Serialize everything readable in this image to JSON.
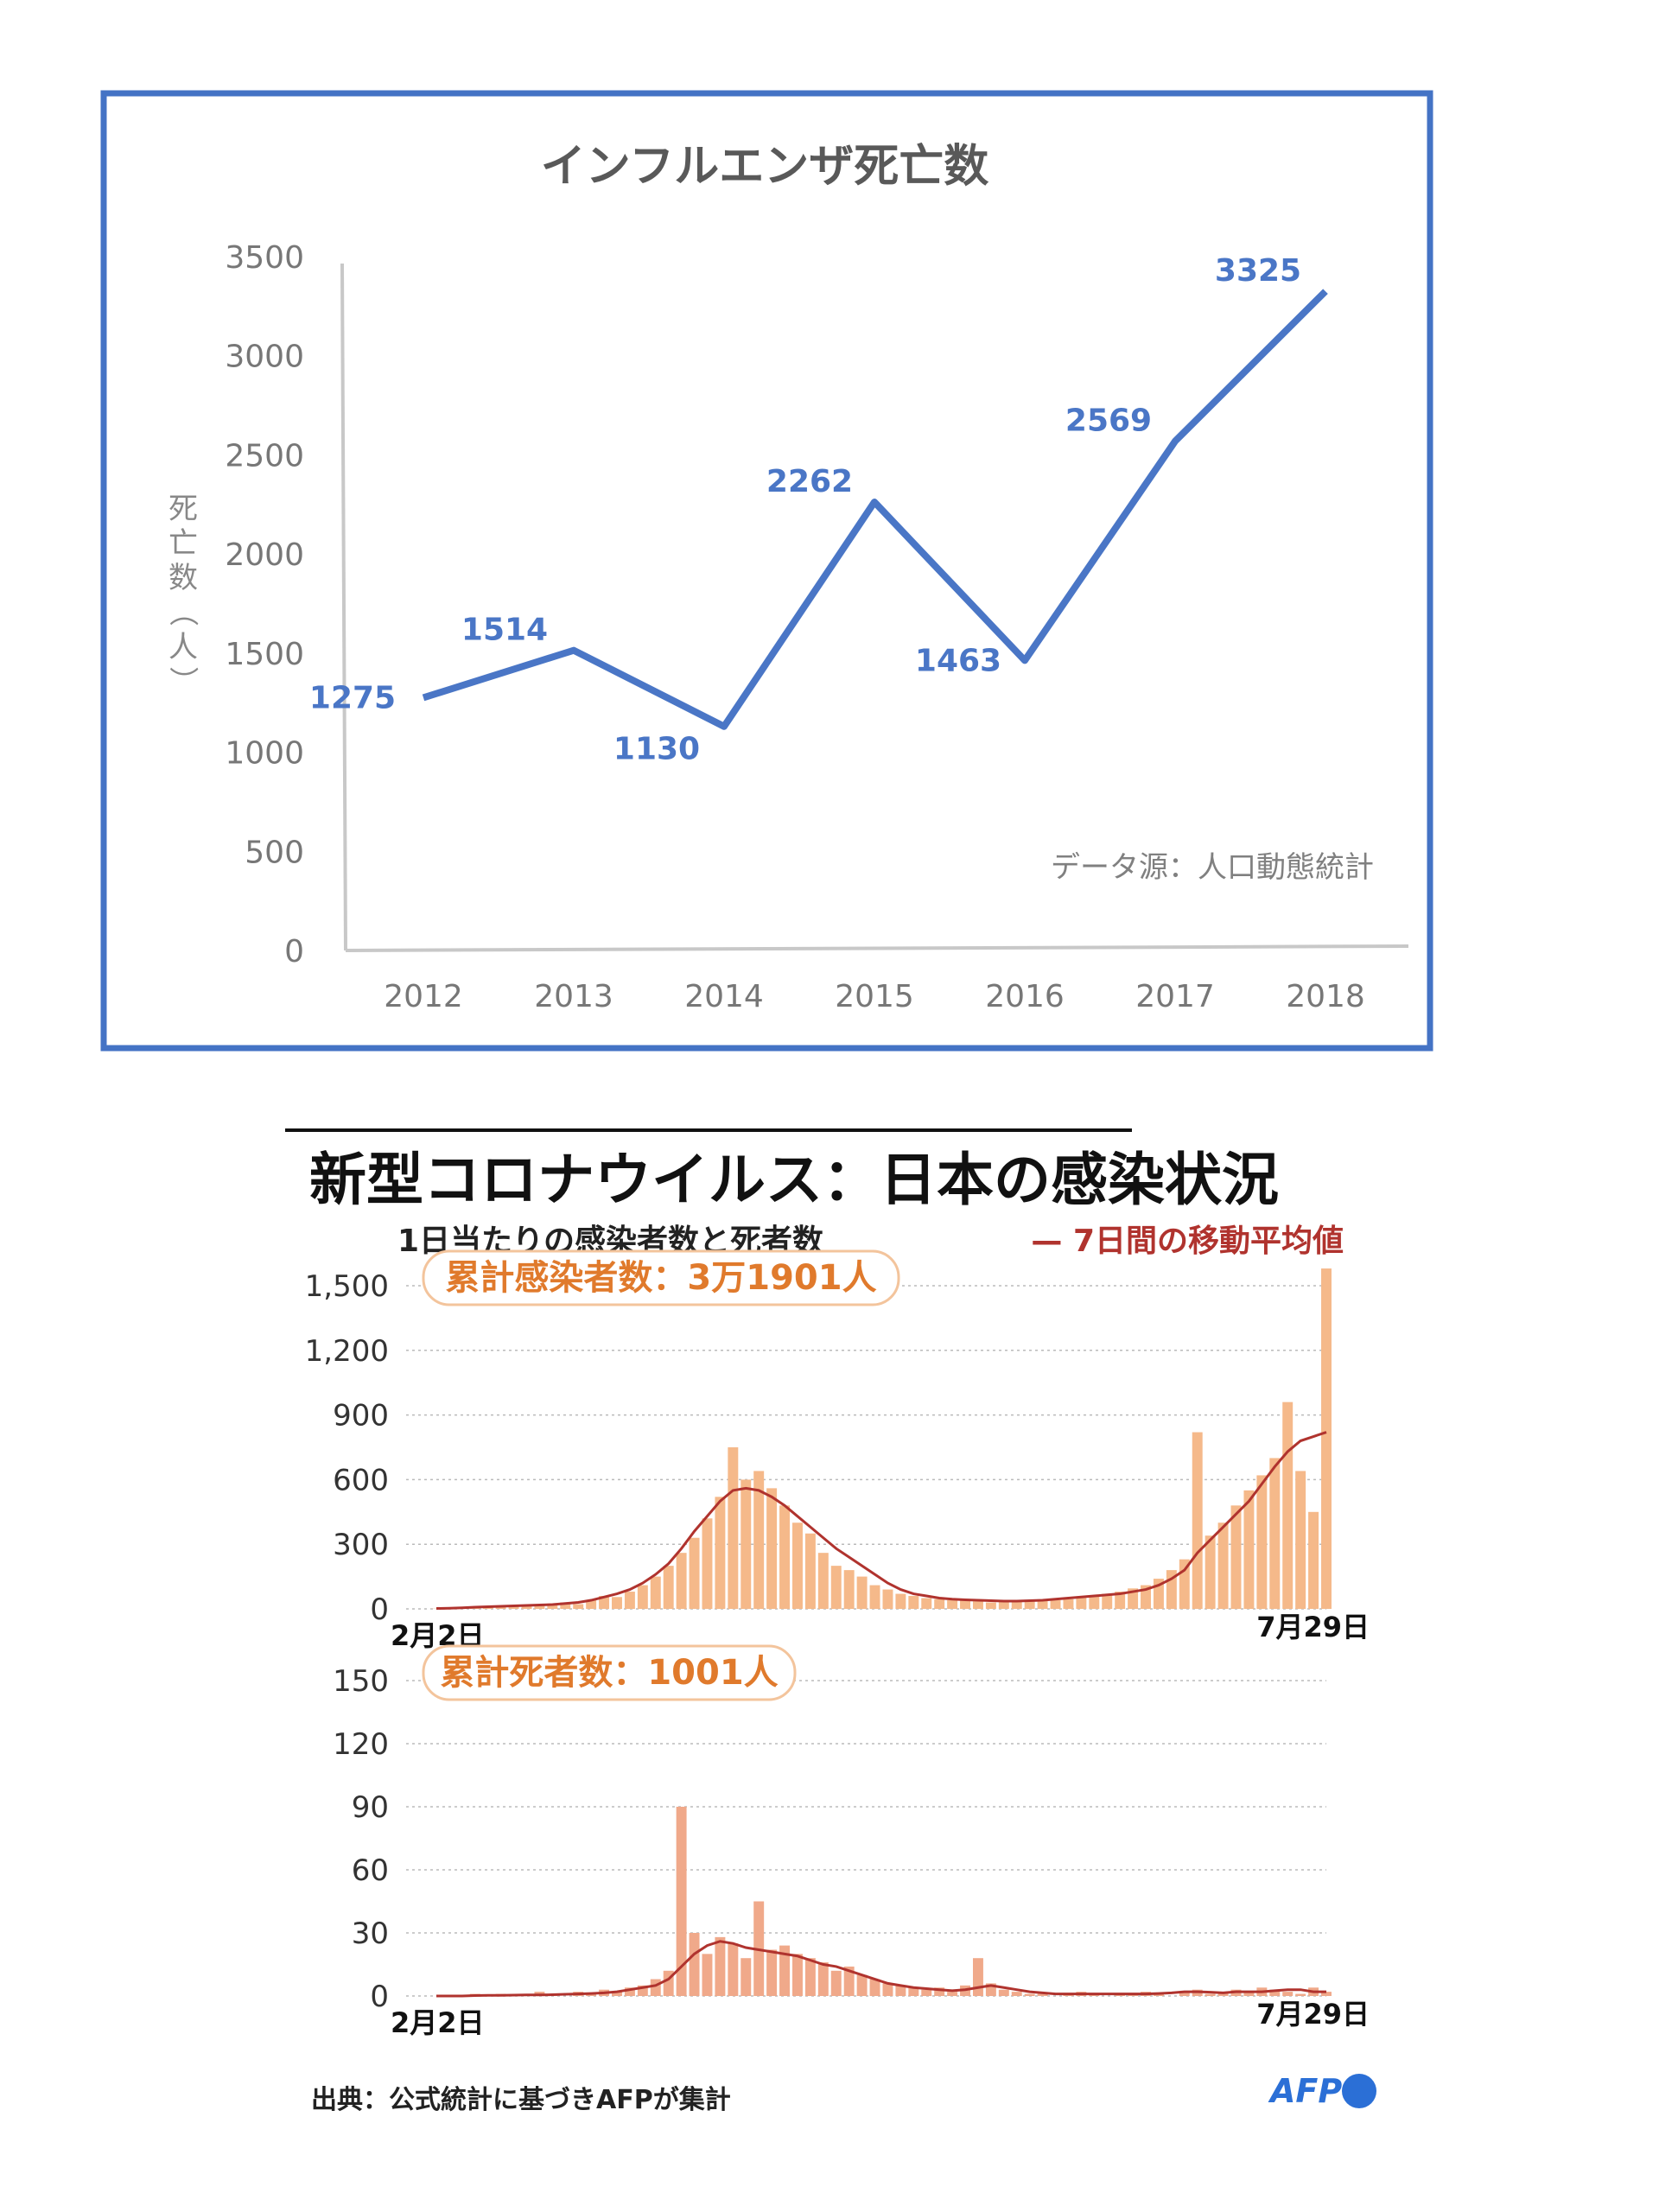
{
  "flu": {
    "title": "インフルエンザ死亡数",
    "ylabel": "死亡数（人）",
    "source_note": "データ源：人口動態統計",
    "line_color": "#4a76c6",
    "frame_color": "#4473c5",
    "chart_data": {
      "type": "line",
      "title": "インフルエンザ死亡数",
      "xlabel": "",
      "ylabel": "死亡数（人）",
      "categories": [
        "2012",
        "2013",
        "2014",
        "2015",
        "2016",
        "2017",
        "2018"
      ],
      "values": [
        1275,
        1514,
        1130,
        2262,
        1463,
        2569,
        3325
      ],
      "data_labels": [
        "1275",
        "1514",
        "1130",
        "2262",
        "1463",
        "2569",
        "3325"
      ],
      "yticks": [
        "0",
        "500",
        "1000",
        "1500",
        "2000",
        "2500",
        "3000",
        "3500"
      ],
      "ylim": [
        0,
        3500
      ],
      "grid": false,
      "legend": "none"
    }
  },
  "covid": {
    "title": "新型コロナウイルス：日本の感染状況",
    "subtitle": "1日当たりの感染者数と死者数",
    "legend_label": "— 7日間の移動平均値",
    "source": "出典：公式統計に基づきAFPが集計",
    "logo": "AFP",
    "bar_color": "#f5b98a",
    "line_color": "#b0332e",
    "accent_color": "#e07a2c",
    "chart_data": [
      {
        "type": "bar",
        "title": "感染者数",
        "badge": "累計感染者数：3万1901人",
        "x_start_label": "2月2日",
        "x_end_label": "7月29日",
        "yticks": [
          "0",
          "300",
          "600",
          "900",
          "1,200",
          "1,500"
        ],
        "ylim": [
          0,
          1500
        ],
        "grid": true,
        "legend": "top-right",
        "series": [
          {
            "name": "7日間の移動平均値",
            "style": "line",
            "values": [
              2,
              3,
              5,
              8,
              10,
              12,
              14,
              16,
              18,
              20,
              25,
              30,
              40,
              55,
              70,
              90,
              120,
              160,
              210,
              280,
              360,
              430,
              500,
              550,
              560,
              550,
              520,
              480,
              430,
              380,
              330,
              280,
              240,
              200,
              160,
              120,
              90,
              70,
              60,
              50,
              45,
              42,
              40,
              38,
              36,
              36,
              38,
              40,
              45,
              50,
              55,
              60,
              65,
              70,
              80,
              90,
              110,
              140,
              180,
              260,
              320,
              380,
              440,
              500,
              580,
              660,
              730,
              780,
              800,
              820
            ]
          },
          {
            "name": "",
            "style": "bar",
            "values": [
              1,
              2,
              4,
              10,
              12,
              8,
              15,
              20,
              18,
              25,
              30,
              22,
              40,
              60,
              55,
              80,
              110,
              150,
              200,
              260,
              330,
              420,
              520,
              750,
              600,
              640,
              560,
              480,
              400,
              350,
              260,
              200,
              180,
              150,
              110,
              90,
              70,
              60,
              50,
              45,
              40,
              38,
              35,
              30,
              32,
              34,
              36,
              38,
              40,
              45,
              55,
              60,
              70,
              80,
              95,
              110,
              140,
              180,
              230,
              820,
              340,
              400,
              480,
              550,
              620,
              700,
              960,
              640,
              450,
              1580
            ]
          }
        ]
      },
      {
        "type": "bar",
        "title": "死者数",
        "badge": "累計死者数：1001人",
        "x_start_label": "2月2日",
        "x_end_label": "7月29日",
        "yticks": [
          "0",
          "30",
          "60",
          "90",
          "120",
          "150"
        ],
        "ylim": [
          0,
          150
        ],
        "grid": true,
        "legend": "none",
        "series": [
          {
            "name": "7日間の移動平均値",
            "style": "line",
            "values": [
              0,
              0,
              0,
              0.2,
              0.3,
              0.3,
              0.4,
              0.5,
              0.5,
              0.6,
              0.8,
              1,
              1.2,
              1.5,
              2,
              3,
              4,
              5,
              8,
              14,
              20,
              24,
              26,
              25,
              23,
              22,
              21,
              20,
              19,
              17,
              15,
              14,
              12,
              10,
              8,
              6,
              5,
              4,
              3.5,
              3,
              2.5,
              3,
              4,
              5,
              4,
              3,
              2,
              1.5,
              1,
              1,
              1,
              1,
              1,
              1,
              1,
              1,
              1.2,
              1.5,
              2,
              2,
              1.8,
              1.5,
              2,
              2,
              2,
              2.5,
              3,
              3,
              2,
              2
            ]
          },
          {
            "name": "",
            "style": "bar",
            "values": [
              0,
              0,
              0,
              1,
              0,
              1,
              0,
              1,
              2,
              1,
              0,
              2,
              1,
              3,
              2,
              4,
              5,
              8,
              12,
              90,
              30,
              20,
              28,
              25,
              18,
              45,
              22,
              24,
              20,
              18,
              16,
              12,
              14,
              10,
              8,
              6,
              5,
              4,
              3,
              4,
              2,
              5,
              18,
              6,
              3,
              2,
              1,
              1,
              0,
              1,
              2,
              1,
              0,
              1,
              1,
              2,
              1,
              0,
              2,
              3,
              1,
              2,
              3,
              2,
              4,
              3,
              2,
              1,
              4,
              2
            ]
          }
        ]
      }
    ]
  }
}
